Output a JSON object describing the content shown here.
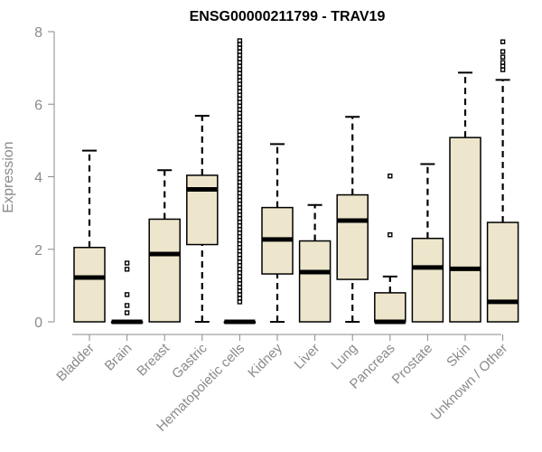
{
  "chart_data": {
    "type": "boxplot",
    "title": "ENSG00000211799 - TRAV19",
    "xlabel": "",
    "ylabel": "Expression",
    "ylim": [
      0,
      8
    ],
    "yticks": [
      0,
      2,
      4,
      6,
      8
    ],
    "box_color": "#ede6cc",
    "categories": [
      "Bladder",
      "Brain",
      "Breast",
      "Gastric",
      "Hematopoietic cells",
      "Kidney",
      "Liver",
      "Lung",
      "Pancreas",
      "Prostate",
      "Skin",
      "Unknown / Other"
    ],
    "boxes": [
      {
        "whisker_low": 0,
        "q1": 0,
        "median": 1.22,
        "q3": 2.05,
        "whisker_high": 4.72,
        "outliers": []
      },
      {
        "whisker_low": 0,
        "q1": 0,
        "median": 0,
        "q3": 0,
        "whisker_high": 0,
        "outliers": [
          0.25,
          0.45,
          0.75,
          1.45,
          1.62
        ]
      },
      {
        "whisker_low": 0,
        "q1": 0,
        "median": 1.87,
        "q3": 2.83,
        "whisker_high": 4.18,
        "outliers": []
      },
      {
        "whisker_low": 0,
        "q1": 2.13,
        "median": 3.65,
        "q3": 4.04,
        "whisker_high": 5.68,
        "outliers": []
      },
      {
        "whisker_low": 0,
        "q1": 0,
        "median": 0,
        "q3": 0,
        "whisker_high": 0,
        "outliers_range": [
          0.55,
          7.75
        ]
      },
      {
        "whisker_low": 0,
        "q1": 1.32,
        "median": 2.27,
        "q3": 3.15,
        "whisker_high": 4.9,
        "outliers": []
      },
      {
        "whisker_low": 0,
        "q1": 0,
        "median": 1.37,
        "q3": 2.23,
        "whisker_high": 3.22,
        "outliers": []
      },
      {
        "whisker_low": 0,
        "q1": 1.17,
        "median": 2.79,
        "q3": 3.5,
        "whisker_high": 5.65,
        "outliers": []
      },
      {
        "whisker_low": 0,
        "q1": 0,
        "median": 0,
        "q3": 0.8,
        "whisker_high": 1.25,
        "outliers": [
          2.4,
          4.02
        ]
      },
      {
        "whisker_low": 0,
        "q1": 0,
        "median": 1.5,
        "q3": 2.3,
        "whisker_high": 4.35,
        "outliers": []
      },
      {
        "whisker_low": 0,
        "q1": 0,
        "median": 1.46,
        "q3": 5.08,
        "whisker_high": 6.87,
        "outliers": []
      },
      {
        "whisker_low": 0,
        "q1": 0,
        "median": 0.55,
        "q3": 2.74,
        "whisker_high": 6.67,
        "outliers": [
          6.95,
          7.05,
          7.15,
          7.3,
          7.45,
          7.72
        ]
      }
    ]
  }
}
